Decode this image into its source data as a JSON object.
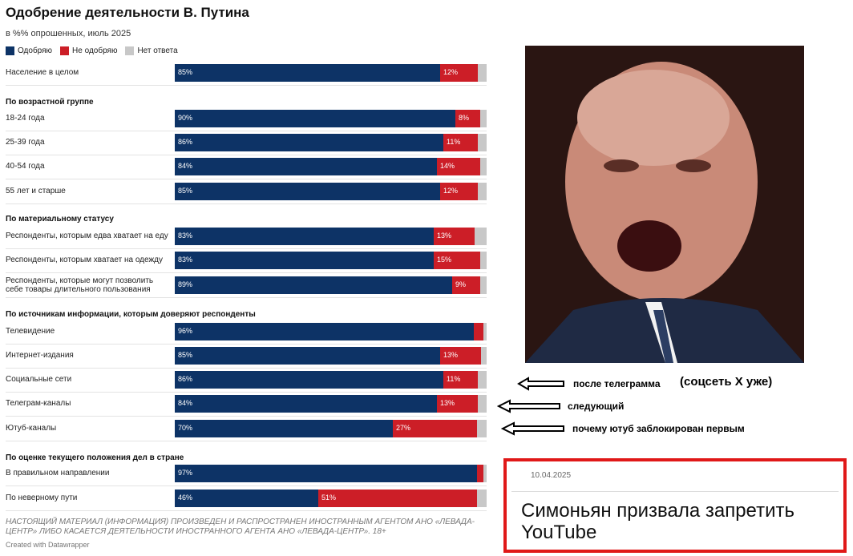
{
  "header": {
    "title": "Одобрение деятельности В. Путина",
    "subtitle": "в %% опрошенных, июль 2025"
  },
  "legend": [
    {
      "label": "Одобряю",
      "color": "#0d3366"
    },
    {
      "label": "Не одобряю",
      "color": "#cc1e27"
    },
    {
      "label": "Нет ответа",
      "color": "#c8c8c8"
    }
  ],
  "groups": [
    {
      "header": "",
      "rows": [
        {
          "label": "Население в целом",
          "approve": 85,
          "disapprove": 12,
          "approve_text": "85%",
          "disapprove_text": "12%"
        }
      ]
    },
    {
      "header": "По возрастной группе",
      "rows": [
        {
          "label": "18-24 года",
          "approve": 90,
          "disapprove": 8,
          "approve_text": "90%",
          "disapprove_text": "8%"
        },
        {
          "label": "25-39 года",
          "approve": 86,
          "disapprove": 11,
          "approve_text": "86%",
          "disapprove_text": "11%"
        },
        {
          "label": "40-54 года",
          "approve": 84,
          "disapprove": 14,
          "approve_text": "84%",
          "disapprove_text": "14%"
        },
        {
          "label": "55 лет и старше",
          "approve": 85,
          "disapprove": 12,
          "approve_text": "85%",
          "disapprove_text": "12%"
        }
      ]
    },
    {
      "header": "По материальному статусу",
      "rows": [
        {
          "label": "Респонденты, которым едва хватает на еду",
          "approve": 83,
          "disapprove": 13,
          "approve_text": "83%",
          "disapprove_text": "13%"
        },
        {
          "label": "Респонденты, которым хватает на одежду",
          "approve": 83,
          "disapprove": 15,
          "approve_text": "83%",
          "disapprove_text": "15%"
        },
        {
          "label": "Респонденты, которые могут позволить себе товары длительного пользования",
          "approve": 89,
          "disapprove": 9,
          "approve_text": "89%",
          "disapprove_text": "9%"
        }
      ]
    },
    {
      "header": "По источникам информации, которым доверяют респонденты",
      "rows": [
        {
          "label": "Телевидение",
          "approve": 96,
          "disapprove": 3,
          "approve_text": "96%",
          "disapprove_text": ""
        },
        {
          "label": "Интернет-издания",
          "approve": 85,
          "disapprove": 13,
          "approve_text": "85%",
          "disapprove_text": "13%"
        },
        {
          "label": "Социальные сети",
          "approve": 86,
          "disapprove": 11,
          "approve_text": "86%",
          "disapprove_text": "11%"
        },
        {
          "label": "Телеграм-каналы",
          "approve": 84,
          "disapprove": 13,
          "approve_text": "84%",
          "disapprove_text": "13%"
        },
        {
          "label": "Ютуб-каналы",
          "approve": 70,
          "disapprove": 27,
          "approve_text": "70%",
          "disapprove_text": "27%"
        }
      ]
    },
    {
      "header": "По оценке текущего положения дел в стране",
      "rows": [
        {
          "label": "В правильном направлении",
          "approve": 97,
          "disapprove": 2,
          "approve_text": "97%",
          "disapprove_text": ""
        },
        {
          "label": "По неверному пути",
          "approve": 46,
          "disapprove": 51,
          "approve_text": "46%",
          "disapprove_text": "51%"
        }
      ]
    }
  ],
  "chart_data": {
    "type": "bar",
    "title": "Одобрение деятельности В. Путина",
    "subtitle": "в %% опрошенных, июль 2025",
    "stacked": true,
    "orientation": "horizontal",
    "xlim": [
      0,
      100
    ],
    "categories": [
      "Население в целом",
      "18-24 года",
      "25-39 года",
      "40-54 года",
      "55 лет и старше",
      "Респонденты, которым едва хватает на еду",
      "Респонденты, которым хватает на одежду",
      "Респонденты, которые могут позволить себе товары длительного пользования",
      "Телевидение",
      "Интернет-издания",
      "Социальные сети",
      "Телеграм-каналы",
      "Ютуб-каналы",
      "В правильном направлении",
      "По неверному пути"
    ],
    "series": [
      {
        "name": "Одобряю",
        "values": [
          85,
          90,
          86,
          84,
          85,
          83,
          83,
          89,
          96,
          85,
          86,
          84,
          70,
          97,
          46
        ]
      },
      {
        "name": "Не одобряю",
        "values": [
          12,
          8,
          11,
          14,
          12,
          13,
          15,
          9,
          3,
          13,
          11,
          13,
          27,
          2,
          51
        ]
      },
      {
        "name": "Нет ответа",
        "values": [
          3,
          2,
          3,
          2,
          3,
          4,
          2,
          2,
          1,
          2,
          3,
          3,
          3,
          1,
          3
        ]
      }
    ]
  },
  "footnote": "НАСТОЯЩИЙ МАТЕРИАЛ (ИНФОРМАЦИЯ) ПРОИЗВЕДЕН И РАСПРОСТРАНЕН ИНОСТРАННЫМ АГЕНТОМ АНО «ЛЕВАДА-ЦЕНТР» ЛИБО КАСАЕТСЯ ДЕЯТЕЛЬНОСТИ ИНОСТРАННОГО АГЕНТА АНО «ЛЕВАДА-ЦЕНТР». 18+",
  "credit": "Created with Datawrapper",
  "annotations": {
    "note1": "после телеграмма",
    "note1b": "(соцсеть Х уже)",
    "note2": "следующий",
    "note3": "почему ютуб заблокирован первым"
  },
  "news": {
    "date": "10.04.2025",
    "title": "Симоньян призвала запретить YouTube"
  }
}
